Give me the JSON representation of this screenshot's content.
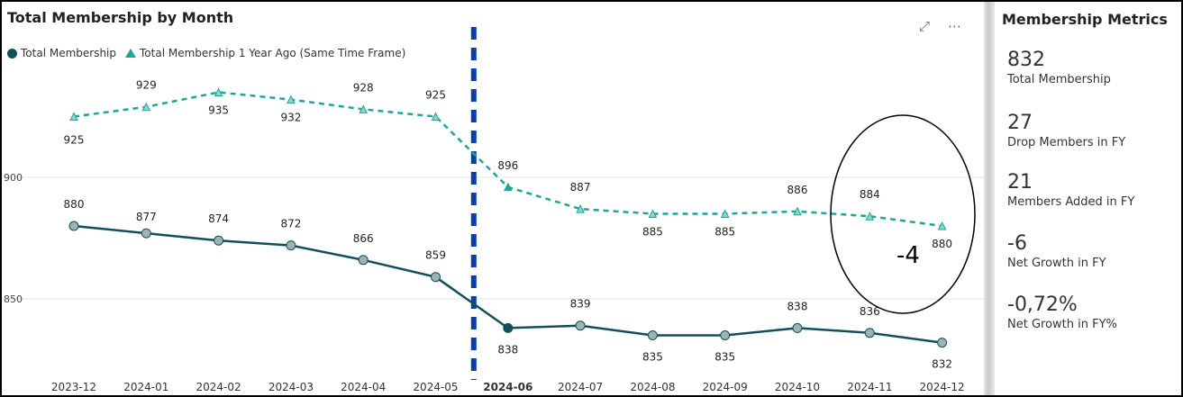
{
  "chart_title": "Total Membership by Month",
  "legend": {
    "series1": "Total Membership",
    "series2": "Total Membership 1 Year Ago (Same Time Frame)"
  },
  "icons": [
    "expand-icon",
    "more-options-icon"
  ],
  "chart_data": {
    "type": "line",
    "title": "Total Membership by Month",
    "categories": [
      "2023-12",
      "2024-01",
      "2024-02",
      "2024-03",
      "2024-04",
      "2024-05",
      "2024-06",
      "2024-07",
      "2024-08",
      "2024-09",
      "2024-10",
      "2024-11",
      "2024-12"
    ],
    "series": [
      {
        "name": "Total Membership",
        "values": [
          880,
          877,
          874,
          872,
          866,
          859,
          838,
          839,
          835,
          835,
          838,
          836,
          832
        ],
        "color": "#124f5a",
        "style": "solid"
      },
      {
        "name": "Total Membership 1 Year Ago (Same Time Frame)",
        "values": [
          925,
          929,
          935,
          932,
          928,
          925,
          896,
          887,
          885,
          885,
          886,
          884,
          880
        ],
        "color": "#21a49a",
        "style": "dashed"
      }
    ],
    "y_ticks": [
      "900",
      "850"
    ],
    "highlight_category": "2024-06",
    "annotation": "-4",
    "grid": true,
    "legend_position": "top-left"
  },
  "metrics": {
    "title": "Membership Metrics",
    "items": [
      {
        "value": "832",
        "label": "Total Membership"
      },
      {
        "value": "27",
        "label": "Drop Members in FY"
      },
      {
        "value": "21",
        "label": "Members Added in FY"
      },
      {
        "value": "-6",
        "label": "Net Growth in FY"
      },
      {
        "value": "-0,72%",
        "label": "Net Growth in FY%"
      }
    ]
  },
  "colors": {
    "series1": "#124f5a",
    "series2": "#21a49a",
    "highlight_line": "#0a3fa8"
  }
}
